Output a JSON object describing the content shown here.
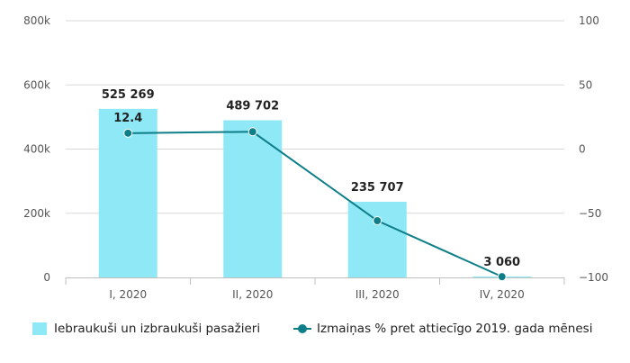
{
  "colors": {
    "bar": "#8EE8F5",
    "line": "#0E7E89",
    "grid": "#d9d9d9",
    "axis": "#bfbfbf"
  },
  "chart_data": {
    "type": "bar",
    "categories": [
      "I, 2020",
      "II, 2020",
      "III, 2020",
      "IV, 2020"
    ],
    "series": [
      {
        "name": "Iebraukuši un izbraukuši pasažieri",
        "type": "bar",
        "axis": "left",
        "values": [
          525269,
          489702,
          235707,
          3060
        ],
        "labels": [
          "525 269",
          "489 702",
          "235 707",
          "3 060"
        ]
      },
      {
        "name": "Izmaiņas % pret attiecīgo 2019. gada mēnesi",
        "type": "line",
        "axis": "right",
        "values": [
          12.4,
          13.5,
          -55.8,
          -99.4
        ],
        "labels": [
          "12.4",
          "",
          "",
          ""
        ]
      }
    ],
    "y_left": {
      "ylim": [
        0,
        800000
      ],
      "ticks": [
        0,
        200000,
        400000,
        600000,
        800000
      ],
      "tick_labels": [
        "0",
        "200k",
        "400k",
        "600k",
        "800k"
      ]
    },
    "y_right": {
      "ylim": [
        -100,
        100
      ],
      "ticks": [
        -100,
        -50,
        0,
        50,
        100
      ],
      "tick_labels": [
        "−100",
        "−50",
        "0",
        "50",
        "100"
      ]
    },
    "grid": true,
    "legend_position": "bottom"
  }
}
